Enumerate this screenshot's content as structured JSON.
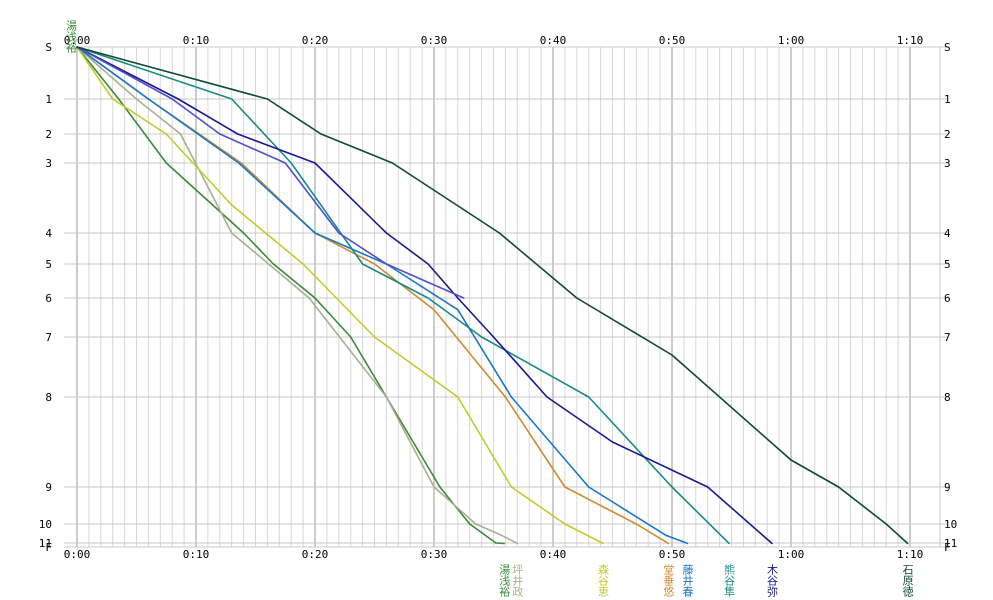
{
  "chart_data": {
    "type": "line",
    "title": "",
    "xlabel": "",
    "ylabel": "",
    "x_unit": "minutes",
    "xlim": [
      0,
      70
    ],
    "x_ticks": [
      "0:00",
      "0:10",
      "0:20",
      "0:30",
      "0:40",
      "0:50",
      "1:00",
      "1:10"
    ],
    "y_ticks": [
      "S",
      "1",
      "2",
      "3",
      "4",
      "5",
      "6",
      "7",
      "8",
      "9",
      "10",
      "11",
      "F"
    ],
    "top_left_label": "湯浅裕",
    "grid": true,
    "series": [
      {
        "name": "湯浅裕",
        "color": "#3a8a3a",
        "x": [
          0,
          3.5,
          7.5,
          14,
          16.5,
          20,
          23,
          26,
          30.5,
          33,
          35.2,
          35.9
        ],
        "y": [
          0,
          1,
          3,
          4,
          5,
          6,
          7,
          8,
          9,
          10,
          11,
          11.1
        ]
      },
      {
        "name": "坪井政",
        "color": "#a8b090",
        "x": [
          0,
          5,
          8.7,
          13,
          19.5,
          26,
          30,
          33.5,
          35.7,
          37
        ],
        "y": [
          0,
          1,
          2,
          4,
          6,
          8,
          9,
          10,
          10.6,
          11.1
        ]
      },
      {
        "name": "森谷恵",
        "color": "#bfcc2c",
        "x": [
          0,
          3,
          7.5,
          13,
          19,
          25,
          32,
          36.5,
          41,
          44.2
        ],
        "y": [
          0,
          1,
          2,
          3.6,
          5,
          7,
          8,
          9,
          10,
          11.1
        ]
      },
      {
        "name": "堂垂悠",
        "color": "#d08a30",
        "x": [
          0,
          6,
          13.8,
          20,
          25,
          30,
          36,
          41,
          47,
          49.7
        ],
        "y": [
          0,
          1,
          3,
          4,
          5,
          6.3,
          8,
          9,
          10,
          11.1
        ]
      },
      {
        "name": "藤井春",
        "color": "#1a78c8",
        "x": [
          0,
          6,
          13.6,
          20,
          26,
          32,
          36.5,
          43,
          49.5,
          51.3
        ],
        "y": [
          0,
          1,
          3,
          4,
          5,
          6.3,
          8,
          9,
          10.6,
          11.1
        ]
      },
      {
        "name": "熊谷隼",
        "color": "#1a8a88",
        "x": [
          0,
          13,
          18,
          24,
          29.5,
          34,
          43,
          50,
          54.8
        ],
        "y": [
          0,
          1,
          3,
          5,
          6,
          7,
          8,
          9,
          11.1
        ]
      },
      {
        "name": "木谷弥",
        "color": "#1a1a90",
        "x": [
          0,
          8.5,
          13.5,
          20,
          26,
          29.5,
          32,
          35,
          39.5,
          45,
          53,
          58.4
        ],
        "y": [
          0,
          1,
          2,
          3,
          4,
          5,
          6,
          7,
          8,
          8.5,
          9,
          11.1
        ]
      },
      {
        "name": "",
        "color": "#5050c8",
        "x": [
          0,
          8,
          12,
          17.5,
          22,
          26,
          32.5
        ],
        "y": [
          0,
          1,
          2,
          3,
          4,
          5,
          6
        ]
      },
      {
        "name": "石原徳",
        "color": "#0e4a3a",
        "x": [
          0,
          16,
          20.5,
          26.5,
          35.5,
          42,
          50,
          60,
          64,
          68,
          69.8
        ],
        "y": [
          0,
          1,
          2,
          3,
          4,
          6,
          7.3,
          8.7,
          9,
          10,
          11.1
        ]
      }
    ]
  }
}
